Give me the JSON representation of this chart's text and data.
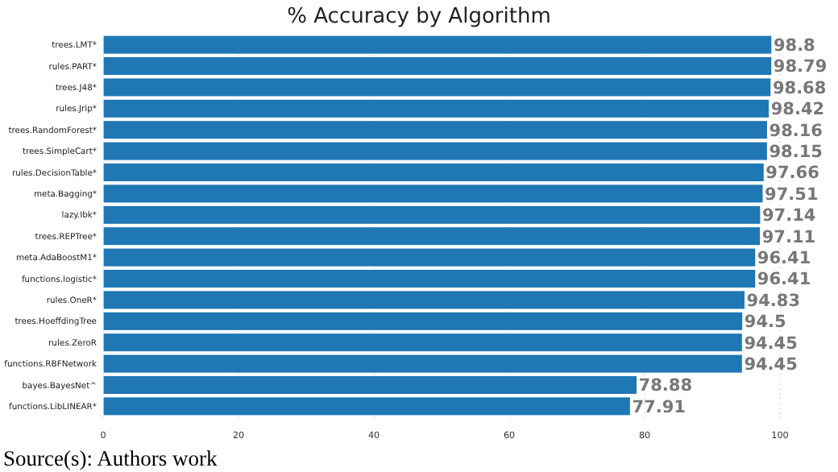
{
  "chart_data": {
    "type": "bar",
    "orientation": "horizontal",
    "title": "% Accuracy by Algorithm",
    "categories": [
      "trees.LMT*",
      "rules.PART*",
      "trees.J48*",
      "rules.Jrip*",
      "trees.RandomForest*",
      "trees.SimpleCart*",
      "rules.DecisionTable*",
      "meta.Bagging*",
      "lazy.Ibk*",
      "trees.REPTree*",
      "meta.AdaBoostM1*",
      "functions.logistic*",
      "rules.OneR*",
      "trees.HoeffdingTree",
      "rules.ZeroR",
      "functions.RBFNetwork",
      "bayes.BayesNet^",
      "functions.LibLINEAR*"
    ],
    "values": [
      98.8,
      98.79,
      98.68,
      98.42,
      98.16,
      98.15,
      97.66,
      97.51,
      97.14,
      97.11,
      96.41,
      96.41,
      94.83,
      94.5,
      94.45,
      94.45,
      78.88,
      77.91
    ],
    "color": "#1f77b4",
    "data_labels": true,
    "xlim": [
      0,
      100
    ],
    "xticks": [
      0,
      20,
      40,
      60,
      80,
      100
    ],
    "grid": "x",
    "annotations": [
      "Source(s): Authors work"
    ]
  }
}
